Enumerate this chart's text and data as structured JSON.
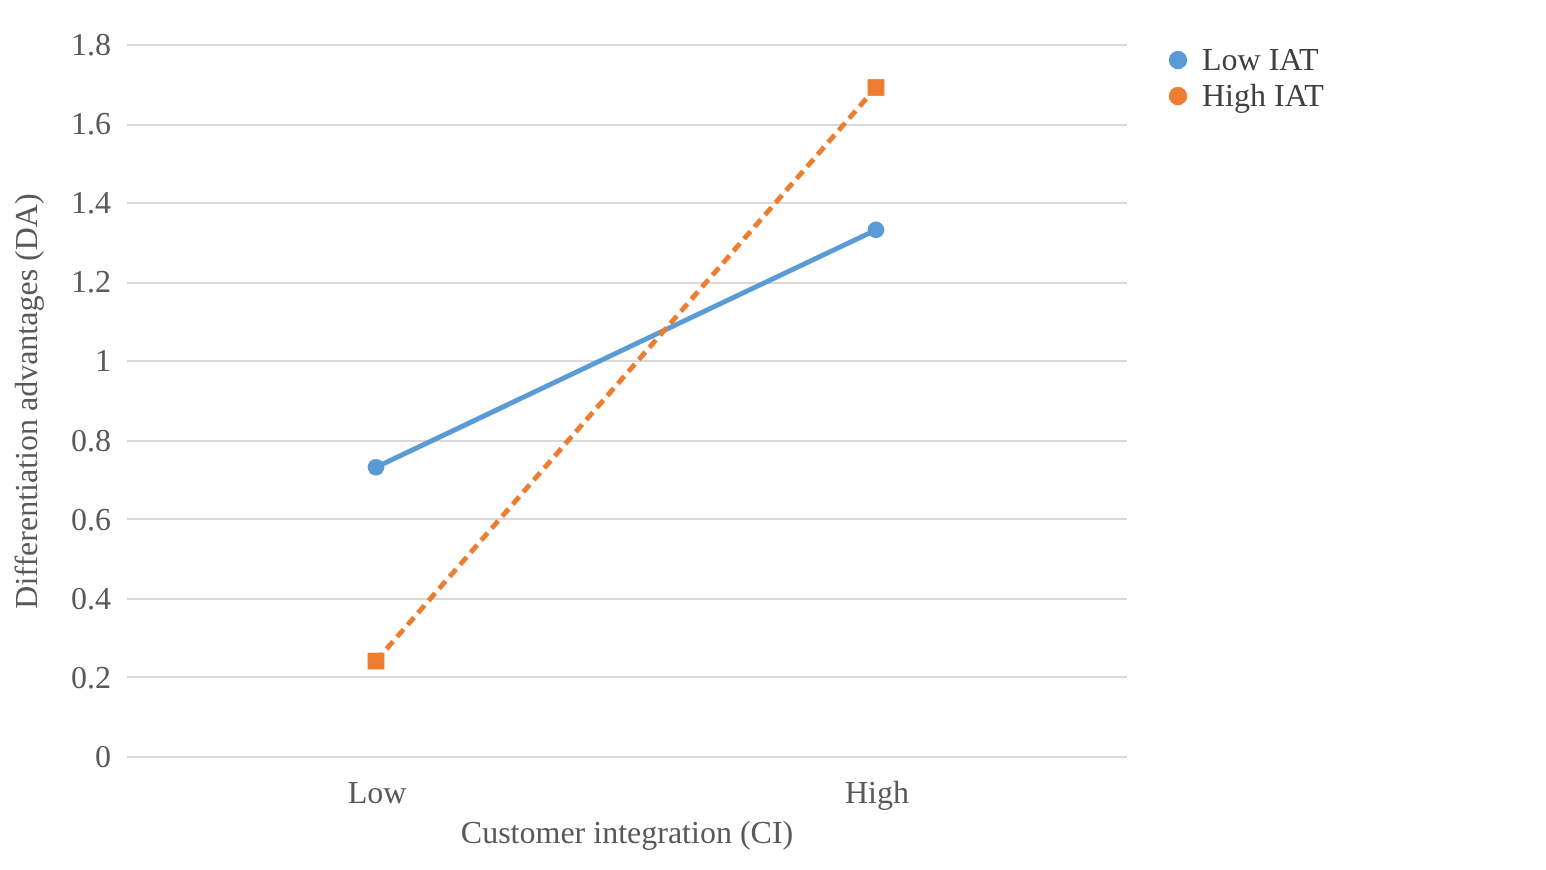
{
  "chart_data": {
    "type": "line",
    "xlabel": "Customer integration (CI)",
    "ylabel": "Differentiation advantages (DA)",
    "categories": [
      "Low",
      "High"
    ],
    "series": [
      {
        "name": "Low IAT",
        "color": "#5b9bd5",
        "values": [
          0.73,
          1.33
        ],
        "marker": "circle",
        "line_style": "solid"
      },
      {
        "name": "High IAT",
        "color": "#ed7d31",
        "values": [
          0.24,
          1.69
        ],
        "marker": "square",
        "line_style": "dashed"
      }
    ],
    "ylim": [
      0,
      1.8
    ],
    "yticks": [
      0,
      0.2,
      0.4,
      0.6,
      0.8,
      1,
      1.2,
      1.4,
      1.6,
      1.8
    ],
    "grid": "y",
    "legend": "right"
  }
}
